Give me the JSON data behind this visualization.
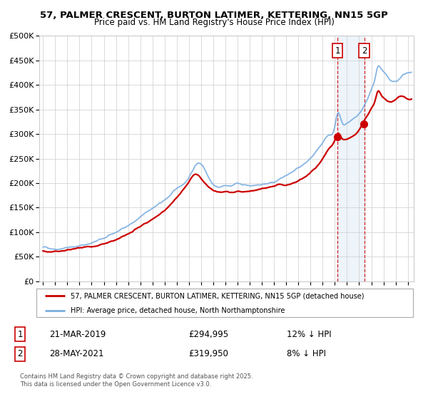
{
  "title1": "57, PALMER CRESCENT, BURTON LATIMER, KETTERING, NN15 5GP",
  "title2": "Price paid vs. HM Land Registry's House Price Index (HPI)",
  "legend_line1": "57, PALMER CRESCENT, BURTON LATIMER, KETTERING, NN15 5GP (detached house)",
  "legend_line2": "HPI: Average price, detached house, North Northamptonshire",
  "annotation1_date": "21-MAR-2019",
  "annotation1_price": "£294,995",
  "annotation1_hpi": "12% ↓ HPI",
  "annotation2_date": "28-MAY-2021",
  "annotation2_price": "£319,950",
  "annotation2_hpi": "8% ↓ HPI",
  "footer": "Contains HM Land Registry data © Crown copyright and database right 2025.\nThis data is licensed under the Open Government Licence v3.0.",
  "red_color": "#cc0000",
  "blue_color": "#7aade0",
  "background_color": "#ffffff",
  "grid_color": "#cccccc",
  "ylim": [
    0,
    500000
  ],
  "ytick_labels": [
    "£0",
    "£50K",
    "£100K",
    "£150K",
    "£200K",
    "£250K",
    "£300K",
    "£350K",
    "£400K",
    "£450K",
    "£500K"
  ],
  "ytick_vals": [
    0,
    50000,
    100000,
    150000,
    200000,
    250000,
    300000,
    350000,
    400000,
    450000,
    500000
  ],
  "sale1_year": 2019.22,
  "sale2_year": 2021.42,
  "sale1_price": 294995,
  "sale2_price": 319950
}
